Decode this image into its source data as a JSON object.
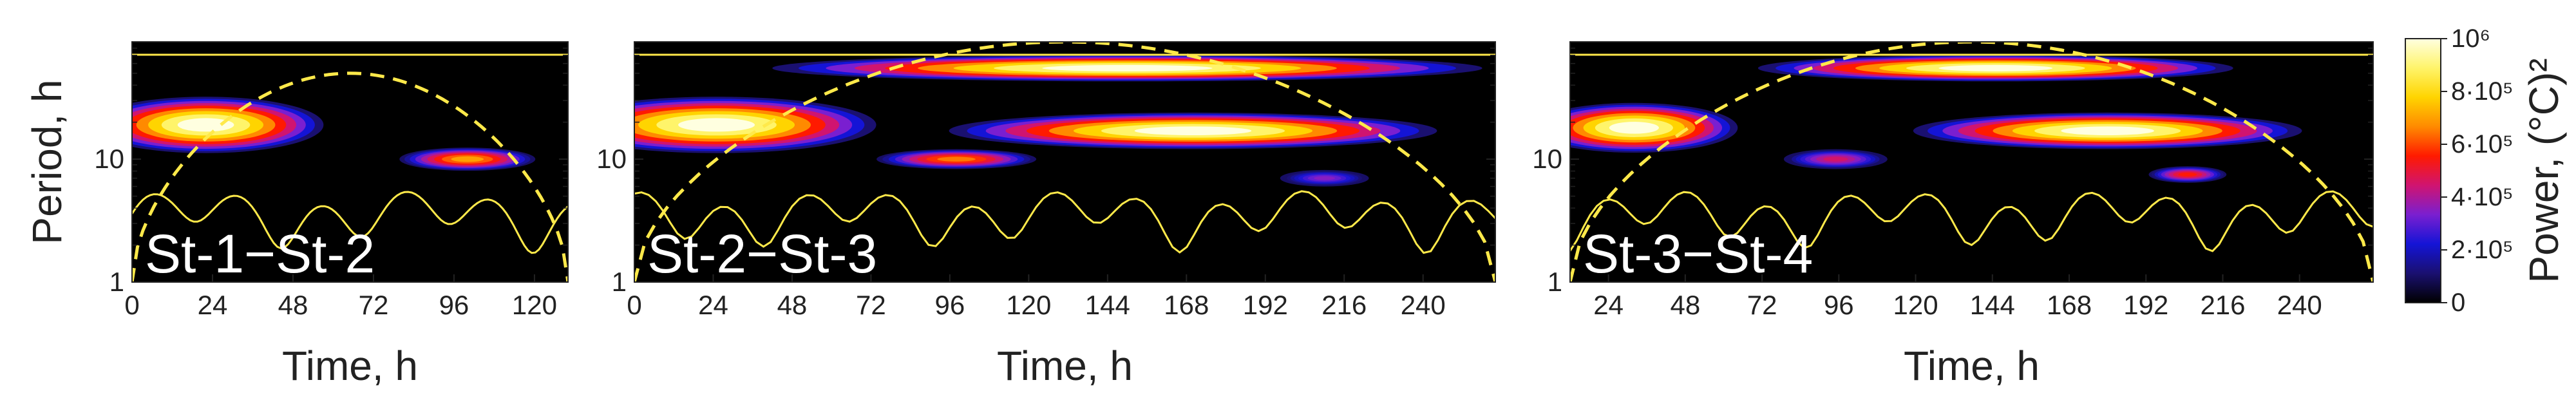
{
  "chart_data": [
    {
      "type": "heatmap",
      "panel_label": "St-1−St-2",
      "xlabel": "Time, h",
      "ylabel": "Period, h",
      "x_ticks": [
        "0",
        "24",
        "48",
        "72",
        "96",
        "120"
      ],
      "x_tick_values": [
        0,
        24,
        48,
        72,
        96,
        120
      ],
      "xlim": [
        0,
        130
      ],
      "y_ticks": [
        "1",
        "10"
      ],
      "y_tick_values": [
        1,
        10
      ],
      "ylim": [
        1,
        90
      ],
      "y_scale": "log",
      "blobs": [
        {
          "t": 22,
          "period": 19,
          "half_width_t": 26,
          "half_height_decades": 0.17,
          "power": 1000000
        },
        {
          "t": 100,
          "period": 10,
          "half_width_t": 15,
          "half_height_decades": 0.07,
          "power": 700000
        }
      ],
      "coi_peak": {
        "t": 62,
        "period": 50
      }
    },
    {
      "type": "heatmap",
      "panel_label": "St-2−St-3",
      "xlabel": "Time, h",
      "ylabel": "",
      "x_ticks": [
        "0",
        "24",
        "48",
        "72",
        "96",
        "120",
        "144",
        "168",
        "192",
        "216",
        "240"
      ],
      "x_tick_values": [
        0,
        24,
        48,
        72,
        96,
        120,
        144,
        168,
        192,
        216,
        240
      ],
      "xlim": [
        0,
        262
      ],
      "y_ticks": [
        "1",
        "10"
      ],
      "y_tick_values": [
        1,
        10
      ],
      "ylim": [
        1,
        90
      ],
      "y_scale": "log",
      "blobs": [
        {
          "t": 25,
          "period": 19,
          "half_width_t": 36,
          "half_height_decades": 0.17,
          "power": 1000000
        },
        {
          "t": 150,
          "period": 55,
          "half_width_t": 80,
          "half_height_decades": 0.08,
          "power": 1000000
        },
        {
          "t": 170,
          "period": 17,
          "half_width_t": 55,
          "half_height_decades": 0.11,
          "power": 1000000
        },
        {
          "t": 98,
          "period": 10,
          "half_width_t": 18,
          "half_height_decades": 0.06,
          "power": 650000
        },
        {
          "t": 210,
          "period": 7,
          "half_width_t": 10,
          "half_height_decades": 0.05,
          "power": 350000
        }
      ],
      "coi_peak": {
        "t": 131,
        "period": 90
      }
    },
    {
      "type": "heatmap",
      "panel_label": "St-3−St-4",
      "xlabel": "Time, h",
      "ylabel": "",
      "x_ticks": [
        "24",
        "48",
        "72",
        "96",
        "120",
        "144",
        "168",
        "192",
        "216",
        "240"
      ],
      "x_tick_values": [
        24,
        48,
        72,
        96,
        120,
        144,
        168,
        192,
        216,
        240
      ],
      "xlim": [
        12,
        263
      ],
      "y_ticks": [
        "1",
        "10"
      ],
      "y_tick_values": [
        1,
        10
      ],
      "ylim": [
        1,
        90
      ],
      "y_scale": "log",
      "blobs": [
        {
          "t": 32,
          "period": 18,
          "half_width_t": 24,
          "half_height_decades": 0.15,
          "power": 1000000
        },
        {
          "t": 145,
          "period": 55,
          "half_width_t": 55,
          "half_height_decades": 0.08,
          "power": 1000000
        },
        {
          "t": 180,
          "period": 17,
          "half_width_t": 45,
          "half_height_decades": 0.11,
          "power": 1000000
        },
        {
          "t": 95,
          "period": 10,
          "half_width_t": 12,
          "half_height_decades": 0.06,
          "power": 450000
        },
        {
          "t": 205,
          "period": 7.5,
          "half_width_t": 9,
          "half_height_decades": 0.05,
          "power": 550000
        }
      ],
      "coi_peak": {
        "t": 138,
        "period": 90
      }
    }
  ],
  "colorbar": {
    "title": "Power, (°C)²",
    "ticks": [
      {
        "value": 0,
        "label": "0"
      },
      {
        "value": 200000,
        "label": "2·10⁵"
      },
      {
        "value": 400000,
        "label": "4·10⁵"
      },
      {
        "value": 600000,
        "label": "6·10⁵"
      },
      {
        "value": 800000,
        "label": "8·10⁵"
      },
      {
        "value": 1000000,
        "label": "10⁶"
      }
    ],
    "range": [
      0,
      1000000
    ],
    "colors": [
      "#000000",
      "#1a1070",
      "#1414d6",
      "#7a1fd0",
      "#d01470",
      "#ff1a00",
      "#ff8a00",
      "#ffd400",
      "#fff46a",
      "#ffffe0"
    ]
  },
  "overlay_colors": {
    "coi": "#ffe94a",
    "significance": "#ffe94a"
  }
}
